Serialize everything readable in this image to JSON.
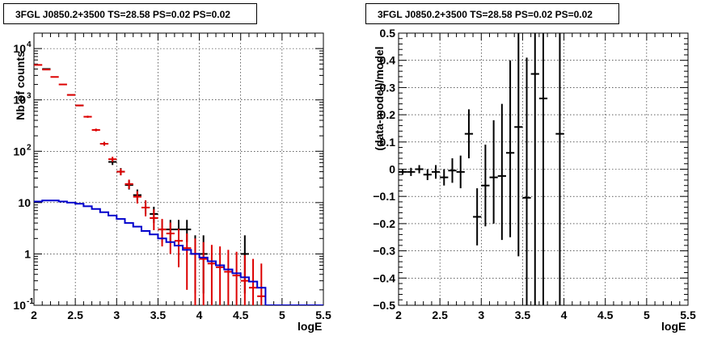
{
  "titles": {
    "left": "3FGL J0850.2+3500 TS=28.58 PS=0.02 PS=0.02",
    "right": "3FGL J0850.2+3500 TS=28.58 PS=0.02 PS=0.02"
  },
  "colors": {
    "data": "#000000",
    "model": "#dd0000",
    "background": "#0000cc",
    "grid": "#000000"
  },
  "chart_data": [
    {
      "type": "line",
      "title": "3FGL J0850.2+3500 TS=28.58 PS=0.02 PS=0.02",
      "xlabel": "logE",
      "ylabel": "Nb of counts",
      "xlim": [
        2,
        5.5
      ],
      "ylim": [
        0.1,
        20000
      ],
      "yscale": "log",
      "grid": true,
      "x_ticks": [
        {
          "v": 2,
          "label": "2"
        },
        {
          "v": 2.5,
          "label": "2.5"
        },
        {
          "v": 3,
          "label": "3"
        },
        {
          "v": 3.5,
          "label": "3.5"
        },
        {
          "v": 4,
          "label": "4"
        },
        {
          "v": 4.5,
          "label": "4.5"
        },
        {
          "v": 5,
          "label": "5"
        },
        {
          "v": 5.5,
          "label": "5.5"
        }
      ],
      "y_ticks": [
        {
          "v": 0.1,
          "label": "10",
          "exp": "-1"
        },
        {
          "v": 1,
          "label": "1",
          "exp": ""
        },
        {
          "v": 10,
          "label": "10",
          "exp": ""
        },
        {
          "v": 100,
          "label": "10",
          "exp": "2"
        },
        {
          "v": 1000,
          "label": "10",
          "exp": "3"
        },
        {
          "v": 10000,
          "label": "10",
          "exp": "4"
        }
      ],
      "series": [
        {
          "role": "data",
          "points": [
            {
              "x": 2.15,
              "y": 4000,
              "lo": 3940,
              "hi": 4060
            },
            {
              "x": 2.45,
              "y": 1250,
              "lo": 1220,
              "hi": 1280
            },
            {
              "x": 2.55,
              "y": 780,
              "lo": 755,
              "hi": 805
            },
            {
              "x": 2.85,
              "y": 140,
              "lo": 128,
              "hi": 152
            },
            {
              "x": 2.95,
              "y": 62,
              "lo": 54,
              "hi": 70
            },
            {
              "x": 3.05,
              "y": 40,
              "lo": 34,
              "hi": 47
            },
            {
              "x": 3.15,
              "y": 22,
              "lo": 18,
              "hi": 27
            },
            {
              "x": 3.25,
              "y": 14,
              "lo": 11,
              "hi": 18
            },
            {
              "x": 3.35,
              "y": 8,
              "lo": 6,
              "hi": 11
            },
            {
              "x": 3.45,
              "y": 6,
              "lo": 4,
              "hi": 8.3
            },
            {
              "x": 3.55,
              "y": 3,
              "lo": 1.7,
              "hi": 4.6
            },
            {
              "x": 3.65,
              "y": 3,
              "lo": 1.7,
              "hi": 4.6
            },
            {
              "x": 3.75,
              "y": 3,
              "lo": 1.7,
              "hi": 4.6
            },
            {
              "x": 3.85,
              "y": 3,
              "lo": 1.7,
              "hi": 4.6
            },
            {
              "x": 3.95,
              "y": 1,
              "lo": 0.17,
              "hi": 2.3
            },
            {
              "x": 4.05,
              "y": 1,
              "lo": 0.17,
              "hi": 2.3
            },
            {
              "x": 4.55,
              "y": 1,
              "lo": 0.17,
              "hi": 2.3
            }
          ]
        },
        {
          "role": "model",
          "points": [
            {
              "x": 2.05,
              "y": 4800,
              "lo": 4730,
              "hi": 4870
            },
            {
              "x": 2.15,
              "y": 3900,
              "lo": 3840,
              "hi": 3960
            },
            {
              "x": 2.25,
              "y": 2800,
              "lo": 2750,
              "hi": 2850
            },
            {
              "x": 2.35,
              "y": 2000,
              "lo": 1955,
              "hi": 2045
            },
            {
              "x": 2.45,
              "y": 1250,
              "lo": 1215,
              "hi": 1285
            },
            {
              "x": 2.55,
              "y": 780,
              "lo": 752,
              "hi": 808
            },
            {
              "x": 2.65,
              "y": 470,
              "lo": 448,
              "hi": 492
            },
            {
              "x": 2.75,
              "y": 260,
              "lo": 244,
              "hi": 276
            },
            {
              "x": 2.85,
              "y": 140,
              "lo": 128,
              "hi": 152
            },
            {
              "x": 2.95,
              "y": 70,
              "lo": 62,
              "hi": 78
            },
            {
              "x": 3.05,
              "y": 40,
              "lo": 34,
              "hi": 46
            },
            {
              "x": 3.15,
              "y": 23,
              "lo": 18.5,
              "hi": 28
            },
            {
              "x": 3.25,
              "y": 13,
              "lo": 9.6,
              "hi": 16.7
            },
            {
              "x": 3.35,
              "y": 8,
              "lo": 5.4,
              "hi": 11
            },
            {
              "x": 3.45,
              "y": 5,
              "lo": 2.9,
              "hi": 7.4
            },
            {
              "x": 3.55,
              "y": 3,
              "lo": 1.4,
              "hi": 4.8
            },
            {
              "x": 3.65,
              "y": 2.5,
              "lo": 1.0,
              "hi": 4.1
            },
            {
              "x": 3.75,
              "y": 1.8,
              "lo": 0.55,
              "hi": 3.1
            },
            {
              "x": 3.85,
              "y": 1.3,
              "lo": 0.2,
              "hi": 2.5
            },
            {
              "x": 3.95,
              "y": 1.0,
              "lo": 0.1,
              "hi": 2.0
            },
            {
              "x": 4.05,
              "y": 0.8,
              "lo": 0.1,
              "hi": 1.7
            },
            {
              "x": 4.15,
              "y": 0.65,
              "lo": 0.1,
              "hi": 1.5
            },
            {
              "x": 4.25,
              "y": 0.55,
              "lo": 0.1,
              "hi": 1.4
            },
            {
              "x": 4.35,
              "y": 0.45,
              "lo": 0.1,
              "hi": 1.2
            },
            {
              "x": 4.45,
              "y": 0.38,
              "lo": 0.1,
              "hi": 1.1
            },
            {
              "x": 4.55,
              "y": 0.3,
              "lo": 0.1,
              "hi": 0.95
            },
            {
              "x": 4.65,
              "y": 0.22,
              "lo": 0.1,
              "hi": 0.8
            },
            {
              "x": 4.75,
              "y": 0.15,
              "lo": 0.1,
              "hi": 0.65
            }
          ]
        },
        {
          "role": "background",
          "style": "step",
          "edges": [
            2,
            2.1,
            2.2,
            2.3,
            2.4,
            2.5,
            2.6,
            2.7,
            2.8,
            2.9,
            3.0,
            3.1,
            3.2,
            3.3,
            3.4,
            3.5,
            3.6,
            3.7,
            3.8,
            3.9,
            4.0,
            4.1,
            4.2,
            4.3,
            4.4,
            4.5,
            4.6,
            4.7,
            4.8,
            4.9,
            5.0,
            5.1,
            5.2,
            5.3,
            5.4,
            5.5
          ],
          "values": [
            10.5,
            11,
            11,
            10.5,
            10,
            9.5,
            8.5,
            7.5,
            6.5,
            5.6,
            4.8,
            4.0,
            3.4,
            2.8,
            2.4,
            2.0,
            1.7,
            1.45,
            1.2,
            1.0,
            0.85,
            0.72,
            0.6,
            0.5,
            0.42,
            0.35,
            0.29,
            0.22,
            0.1,
            0.1,
            0.1,
            0.1,
            0.1,
            0.1,
            0.1
          ]
        }
      ]
    },
    {
      "type": "scatter",
      "title": "3FGL J0850.2+3500 TS=28.58 PS=0.02 PS=0.02",
      "xlabel": "logE",
      "ylabel": "(data-model)/model",
      "xlim": [
        2,
        5.5
      ],
      "ylim": [
        -0.5,
        0.5
      ],
      "grid": true,
      "x_ticks": [
        {
          "v": 2,
          "label": "2"
        },
        {
          "v": 2.5,
          "label": "2.5"
        },
        {
          "v": 3,
          "label": "3"
        },
        {
          "v": 3.5,
          "label": "3.5"
        },
        {
          "v": 4,
          "label": "4"
        },
        {
          "v": 4.5,
          "label": "4.5"
        },
        {
          "v": 5,
          "label": "5"
        },
        {
          "v": 5.5,
          "label": "5.5"
        }
      ],
      "y_ticks": [
        {
          "v": -0.5,
          "label": "−0.5"
        },
        {
          "v": -0.4,
          "label": "−0.4"
        },
        {
          "v": -0.3,
          "label": "−0.3"
        },
        {
          "v": -0.2,
          "label": "−0.2"
        },
        {
          "v": -0.1,
          "label": "−0.1"
        },
        {
          "v": 0,
          "label": "0"
        },
        {
          "v": 0.1,
          "label": "0.1"
        },
        {
          "v": 0.2,
          "label": "0.2"
        },
        {
          "v": 0.3,
          "label": "0.3"
        },
        {
          "v": 0.4,
          "label": "0.4"
        },
        {
          "v": 0.5,
          "label": "0.5"
        }
      ],
      "series": [
        {
          "role": "residual",
          "points": [
            {
              "x": 2.05,
              "y": -0.01,
              "lo": -0.02,
              "hi": 0.0
            },
            {
              "x": 2.15,
              "y": -0.01,
              "lo": -0.025,
              "hi": 0.005
            },
            {
              "x": 2.25,
              "y": 0.0,
              "lo": -0.015,
              "hi": 0.015
            },
            {
              "x": 2.35,
              "y": -0.02,
              "lo": -0.04,
              "hi": 0.0
            },
            {
              "x": 2.45,
              "y": -0.01,
              "lo": -0.035,
              "hi": 0.015
            },
            {
              "x": 2.55,
              "y": -0.03,
              "lo": -0.06,
              "hi": 0.0
            },
            {
              "x": 2.65,
              "y": -0.005,
              "lo": -0.05,
              "hi": 0.04
            },
            {
              "x": 2.75,
              "y": -0.01,
              "lo": -0.07,
              "hi": 0.05
            },
            {
              "x": 2.85,
              "y": 0.13,
              "lo": 0.04,
              "hi": 0.22
            },
            {
              "x": 2.95,
              "y": -0.175,
              "lo": -0.28,
              "hi": -0.07
            },
            {
              "x": 3.05,
              "y": -0.06,
              "lo": -0.21,
              "hi": 0.09
            },
            {
              "x": 3.15,
              "y": -0.03,
              "lo": -0.2,
              "hi": 0.18
            },
            {
              "x": 3.25,
              "y": -0.025,
              "lo": -0.26,
              "hi": 0.24
            },
            {
              "x": 3.35,
              "y": 0.06,
              "lo": -0.25,
              "hi": 0.4
            },
            {
              "x": 3.45,
              "y": 0.155,
              "lo": -0.32,
              "hi": 0.5
            },
            {
              "x": 3.55,
              "y": -0.105,
              "lo": -0.5,
              "hi": 0.41
            },
            {
              "x": 3.65,
              "y": 0.35,
              "lo": -0.5,
              "hi": 0.5
            },
            {
              "x": 3.75,
              "y": 0.26,
              "lo": -0.5,
              "hi": 0.5
            },
            {
              "x": 3.95,
              "y": 0.13,
              "lo": -0.5,
              "hi": 0.5
            }
          ]
        }
      ]
    }
  ]
}
